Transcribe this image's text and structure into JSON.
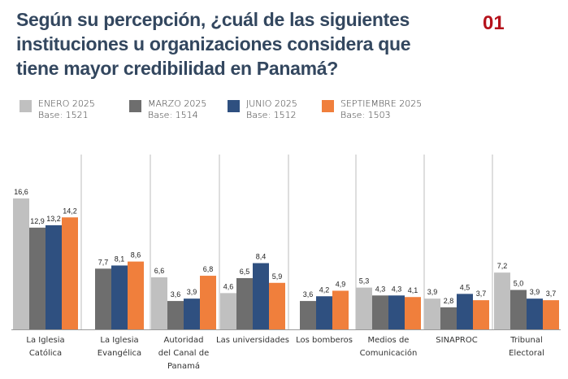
{
  "header": {
    "title": "Según su percepción, ¿cuál de las siguientes instituciones u organizaciones considera que tiene mayor credibilidad en Panamá?",
    "number": "01"
  },
  "legend": [
    {
      "label": "ENERO 2025",
      "base": "Base: 1521",
      "color": "#c0c0c0"
    },
    {
      "label": "MARZO 2025",
      "base": "Base: 1514",
      "color": "#6e6e6e"
    },
    {
      "label": "JUNIO 2025",
      "base": "Base: 1512",
      "color": "#2f5080"
    },
    {
      "label": "SEPTIEMBRE 2025",
      "base": "Base: 1503",
      "color": "#f07f3c"
    }
  ],
  "chart_data": {
    "type": "bar",
    "title": "Según su percepción, ¿cuál de las siguientes instituciones u organizaciones considera que tiene mayor credibilidad en Panamá?",
    "xlabel": "",
    "ylabel": "",
    "ylim": [
      0,
      17
    ],
    "grid": false,
    "legend_position": "top-left",
    "categories": [
      [
        "La Iglesia",
        "Católica"
      ],
      [
        "La Iglesia",
        "Evangélica"
      ],
      [
        "Autoridad",
        "del Canal de",
        "Panamá"
      ],
      [
        "Las universidades"
      ],
      [
        "Los bomberos"
      ],
      [
        "Medios de",
        "Comunicación"
      ],
      [
        "SINAPROC"
      ],
      [
        "Tribunal",
        "Electoral"
      ]
    ],
    "series": [
      {
        "name": "ENERO 2025",
        "values": [
          16.6,
          null,
          6.6,
          4.6,
          null,
          5.3,
          3.9,
          7.2
        ]
      },
      {
        "name": "MARZO 2025",
        "values": [
          12.9,
          7.7,
          3.6,
          6.5,
          3.6,
          4.3,
          2.8,
          5.0
        ]
      },
      {
        "name": "JUNIO 2025",
        "values": [
          13.2,
          8.1,
          3.9,
          8.4,
          4.2,
          4.3,
          4.5,
          3.9
        ]
      },
      {
        "name": "SEPTIEMBRE 2025",
        "values": [
          14.2,
          8.6,
          6.8,
          5.9,
          4.9,
          4.1,
          3.7,
          3.7
        ]
      }
    ]
  }
}
